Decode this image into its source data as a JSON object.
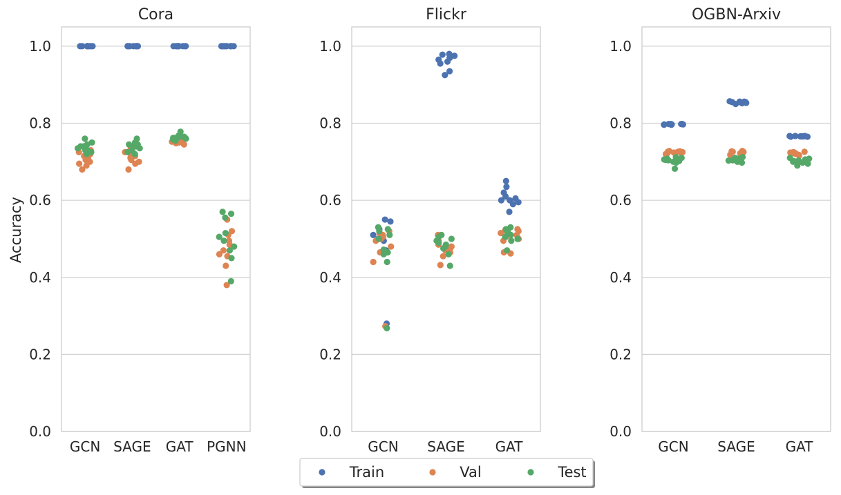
{
  "chart_data": {
    "type": "scatter",
    "ylabel": "Accuracy",
    "ylim": [
      0,
      1.05
    ],
    "y_ticks": [
      0.0,
      0.2,
      0.4,
      0.6,
      0.8,
      1.0
    ],
    "y_tick_labels": [
      "0.0",
      "0.2",
      "0.4",
      "0.6",
      "0.8",
      "1.0"
    ],
    "legend": {
      "placement": "bottom-center",
      "entries": [
        {
          "name": "Train",
          "color": "#4c72b0"
        },
        {
          "name": "Val",
          "color": "#dd8452"
        },
        {
          "name": "Test",
          "color": "#55a868"
        }
      ]
    },
    "panels": [
      {
        "title": "Cora",
        "categories": [
          "GCN",
          "SAGE",
          "GAT",
          "PGNN"
        ],
        "series": [
          {
            "name": "Train",
            "values": [
              [
                1.0,
                1.0,
                1.0,
                1.0,
                1.0,
                1.0,
                1.0,
                1.0,
                1.0,
                1.0
              ],
              [
                1.0,
                1.0,
                1.0,
                1.0,
                1.0,
                1.0,
                1.0,
                1.0,
                1.0,
                1.0
              ],
              [
                1.0,
                1.0,
                1.0,
                1.0,
                1.0,
                1.0,
                1.0,
                1.0,
                1.0,
                1.0
              ],
              [
                1.0,
                1.0,
                1.0,
                1.0,
                1.0,
                1.0,
                1.0,
                1.0,
                1.0,
                1.0
              ]
            ]
          },
          {
            "name": "Val",
            "values": [
              [
                0.715,
                0.73,
                0.7,
                0.68,
                0.705,
                0.72,
                0.71,
                0.695,
                0.69,
                0.725
              ],
              [
                0.715,
                0.72,
                0.695,
                0.68,
                0.71,
                0.735,
                0.72,
                0.7,
                0.705,
                0.725
              ],
              [
                0.76,
                0.758,
                0.755,
                0.752,
                0.75,
                0.748,
                0.757,
                0.762,
                0.745,
                0.75
              ],
              [
                0.55,
                0.52,
                0.51,
                0.485,
                0.46,
                0.455,
                0.43,
                0.38,
                0.495,
                0.47
              ]
            ]
          },
          {
            "name": "Test",
            "values": [
              [
                0.76,
                0.75,
                0.74,
                0.73,
                0.725,
                0.72,
                0.735,
                0.745,
                0.73,
                0.74
              ],
              [
                0.76,
                0.75,
                0.745,
                0.74,
                0.735,
                0.73,
                0.725,
                0.74,
                0.72,
                0.745
              ],
              [
                0.778,
                0.765,
                0.762,
                0.76,
                0.758,
                0.755,
                0.768,
                0.765,
                0.76,
                0.763
              ],
              [
                0.57,
                0.565,
                0.555,
                0.515,
                0.505,
                0.495,
                0.47,
                0.45,
                0.39,
                0.48
              ]
            ]
          }
        ]
      },
      {
        "title": "Flickr",
        "categories": [
          "GCN",
          "SAGE",
          "GAT"
        ],
        "series": [
          {
            "name": "Train",
            "values": [
              [
                0.55,
                0.545,
                0.525,
                0.51,
                0.5,
                0.495,
                0.47,
                0.465,
                0.28,
                0.505
              ],
              [
                0.98,
                0.975,
                0.97,
                0.965,
                0.96,
                0.955,
                0.935,
                0.925,
                0.978,
                0.97
              ],
              [
                0.65,
                0.635,
                0.62,
                0.61,
                0.6,
                0.6,
                0.595,
                0.59,
                0.57,
                0.605
              ]
            ]
          },
          {
            "name": "Val",
            "values": [
              [
                0.52,
                0.515,
                0.51,
                0.505,
                0.495,
                0.48,
                0.465,
                0.44,
                0.273,
                0.5
              ],
              [
                0.51,
                0.495,
                0.49,
                0.485,
                0.48,
                0.475,
                0.465,
                0.455,
                0.432,
                0.47
              ],
              [
                0.525,
                0.522,
                0.515,
                0.51,
                0.505,
                0.5,
                0.495,
                0.465,
                0.462,
                0.52
              ]
            ]
          },
          {
            "name": "Test",
            "values": [
              [
                0.53,
                0.525,
                0.52,
                0.51,
                0.5,
                0.472,
                0.465,
                0.46,
                0.44,
                0.268
              ],
              [
                0.51,
                0.505,
                0.5,
                0.495,
                0.49,
                0.485,
                0.48,
                0.475,
                0.43,
                0.46
              ],
              [
                0.53,
                0.525,
                0.52,
                0.515,
                0.51,
                0.505,
                0.5,
                0.5,
                0.495,
                0.47
              ]
            ]
          }
        ]
      },
      {
        "title": "OGBN-Arxiv",
        "categories": [
          "GCN",
          "SAGE",
          "GAT"
        ],
        "series": [
          {
            "name": "Train",
            "values": [
              [
                0.798,
                0.798,
                0.797,
                0.797,
                0.796,
                0.798,
                0.797,
                0.796,
                0.797,
                0.798
              ],
              [
                0.857,
                0.856,
                0.855,
                0.855,
                0.854,
                0.853,
                0.852,
                0.85,
                0.856,
                0.855
              ],
              [
                0.767,
                0.767,
                0.766,
                0.766,
                0.766,
                0.765,
                0.765,
                0.766,
                0.767,
                0.766
              ]
            ]
          },
          {
            "name": "Val",
            "values": [
              [
                0.728,
                0.727,
                0.726,
                0.725,
                0.724,
                0.723,
                0.722,
                0.72,
                0.726,
                0.725
              ],
              [
                0.728,
                0.727,
                0.726,
                0.725,
                0.724,
                0.722,
                0.72,
                0.718,
                0.727,
                0.726
              ],
              [
                0.726,
                0.725,
                0.724,
                0.723,
                0.722,
                0.72,
                0.718,
                0.716,
                0.724,
                0.722
              ]
            ]
          },
          {
            "name": "Test",
            "values": [
              [
                0.712,
                0.71,
                0.708,
                0.706,
                0.704,
                0.702,
                0.7,
                0.698,
                0.682,
                0.705
              ],
              [
                0.712,
                0.71,
                0.708,
                0.706,
                0.704,
                0.703,
                0.702,
                0.7,
                0.698,
                0.705
              ],
              [
                0.71,
                0.708,
                0.706,
                0.704,
                0.702,
                0.7,
                0.698,
                0.695,
                0.69,
                0.703
              ]
            ]
          }
        ]
      }
    ]
  }
}
